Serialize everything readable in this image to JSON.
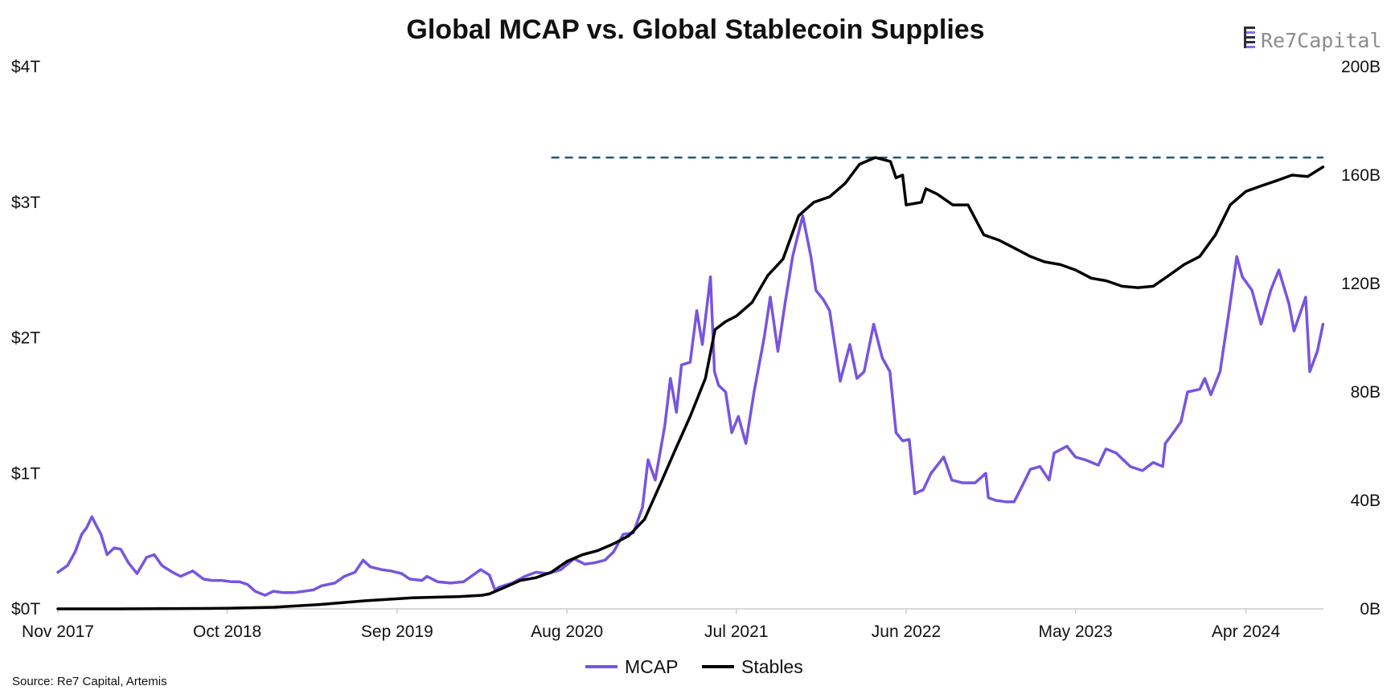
{
  "colors": {
    "mcap": "#7755e0",
    "stables": "#000000",
    "reference": "#1f5a7a",
    "axis": "#cccccc",
    "logo_bar_dark": "#2c2c3a",
    "logo_bar_accent": "#8a6fe0",
    "logo_text": "#8c8c8c"
  },
  "brand": {
    "name": "Re7Capital",
    "name_part1": "Re7",
    "name_part2": "Capital",
    "icon": "re7-logo-icon"
  },
  "source": "Source: Re7 Capital, Artemis",
  "chart_data": {
    "type": "line",
    "title": "Global MCAP vs. Global Stablecoin Supplies",
    "x_range": [
      "2017-11-01",
      "2024-09-01"
    ],
    "x_ticks": [
      {
        "label": "Nov 2017",
        "date": "2017-11-01"
      },
      {
        "label": "Oct 2018",
        "date": "2018-10-01"
      },
      {
        "label": "Sep 2019",
        "date": "2019-09-01"
      },
      {
        "label": "Aug 2020",
        "date": "2020-08-01"
      },
      {
        "label": "Jul 2021",
        "date": "2021-07-01"
      },
      {
        "label": "Jun 2022",
        "date": "2022-06-01"
      },
      {
        "label": "May 2023",
        "date": "2023-05-01"
      },
      {
        "label": "Apr 2024",
        "date": "2024-04-01"
      }
    ],
    "y_left": {
      "range": [
        0,
        4
      ],
      "unit": "trillion USD",
      "ticks": [
        {
          "label": "$0T",
          "value": 0
        },
        {
          "label": "$1T",
          "value": 1
        },
        {
          "label": "$2T",
          "value": 2
        },
        {
          "label": "$3T",
          "value": 3
        },
        {
          "label": "$4T",
          "value": 4
        }
      ]
    },
    "y_right": {
      "range": [
        0,
        200
      ],
      "unit": "billion USD",
      "ticks": [
        {
          "label": "0B",
          "value": 0
        },
        {
          "label": "40B",
          "value": 40
        },
        {
          "label": "80B",
          "value": 80
        },
        {
          "label": "120B",
          "value": 120
        },
        {
          "label": "160B",
          "value": 160
        },
        {
          "label": "200B",
          "value": 200
        }
      ]
    },
    "reference_line": {
      "axis": "right",
      "value": 166.5,
      "x_start": "2020-07-01",
      "x_end": "2024-09-01",
      "style": "dashed"
    },
    "legend": {
      "position": "bottom-center",
      "items": [
        "MCAP",
        "Stables"
      ]
    },
    "series": [
      {
        "name": "MCAP",
        "axis": "left",
        "points": [
          [
            "2017-11-01",
            0.27
          ],
          [
            "2017-11-20",
            0.32
          ],
          [
            "2017-12-05",
            0.42
          ],
          [
            "2017-12-18",
            0.55
          ],
          [
            "2017-12-28",
            0.6
          ],
          [
            "2018-01-07",
            0.68
          ],
          [
            "2018-01-15",
            0.62
          ],
          [
            "2018-01-25",
            0.55
          ],
          [
            "2018-02-06",
            0.4
          ],
          [
            "2018-02-20",
            0.45
          ],
          [
            "2018-03-05",
            0.44
          ],
          [
            "2018-03-20",
            0.34
          ],
          [
            "2018-04-06",
            0.26
          ],
          [
            "2018-04-25",
            0.38
          ],
          [
            "2018-05-10",
            0.4
          ],
          [
            "2018-05-25",
            0.32
          ],
          [
            "2018-06-15",
            0.27
          ],
          [
            "2018-07-01",
            0.24
          ],
          [
            "2018-07-25",
            0.28
          ],
          [
            "2018-08-15",
            0.22
          ],
          [
            "2018-09-01",
            0.21
          ],
          [
            "2018-09-20",
            0.21
          ],
          [
            "2018-10-10",
            0.2
          ],
          [
            "2018-10-25",
            0.2
          ],
          [
            "2018-11-10",
            0.18
          ],
          [
            "2018-11-25",
            0.13
          ],
          [
            "2018-12-15",
            0.1
          ],
          [
            "2018-12-31",
            0.13
          ],
          [
            "2019-01-20",
            0.12
          ],
          [
            "2019-02-10",
            0.12
          ],
          [
            "2019-03-01",
            0.13
          ],
          [
            "2019-03-20",
            0.14
          ],
          [
            "2019-04-05",
            0.17
          ],
          [
            "2019-05-01",
            0.19
          ],
          [
            "2019-05-20",
            0.24
          ],
          [
            "2019-06-10",
            0.27
          ],
          [
            "2019-06-26",
            0.36
          ],
          [
            "2019-07-10",
            0.31
          ],
          [
            "2019-08-01",
            0.29
          ],
          [
            "2019-08-20",
            0.28
          ],
          [
            "2019-09-10",
            0.26
          ],
          [
            "2019-09-26",
            0.22
          ],
          [
            "2019-10-20",
            0.21
          ],
          [
            "2019-10-30",
            0.24
          ],
          [
            "2019-11-20",
            0.2
          ],
          [
            "2019-12-15",
            0.19
          ],
          [
            "2020-01-10",
            0.2
          ],
          [
            "2020-02-13",
            0.29
          ],
          [
            "2020-03-01",
            0.25
          ],
          [
            "2020-03-12",
            0.14
          ],
          [
            "2020-03-20",
            0.16
          ],
          [
            "2020-04-15",
            0.19
          ],
          [
            "2020-05-10",
            0.24
          ],
          [
            "2020-06-01",
            0.27
          ],
          [
            "2020-06-25",
            0.26
          ],
          [
            "2020-07-20",
            0.29
          ],
          [
            "2020-08-15",
            0.37
          ],
          [
            "2020-09-05",
            0.33
          ],
          [
            "2020-09-25",
            0.34
          ],
          [
            "2020-10-15",
            0.36
          ],
          [
            "2020-11-01",
            0.42
          ],
          [
            "2020-11-20",
            0.55
          ],
          [
            "2020-12-10",
            0.56
          ],
          [
            "2020-12-28",
            0.75
          ],
          [
            "2021-01-08",
            1.1
          ],
          [
            "2021-01-22",
            0.95
          ],
          [
            "2021-02-10",
            1.35
          ],
          [
            "2021-02-21",
            1.7
          ],
          [
            "2021-03-05",
            1.45
          ],
          [
            "2021-03-15",
            1.8
          ],
          [
            "2021-04-01",
            1.82
          ],
          [
            "2021-04-14",
            2.2
          ],
          [
            "2021-04-25",
            1.95
          ],
          [
            "2021-05-11",
            2.45
          ],
          [
            "2021-05-19",
            1.75
          ],
          [
            "2021-05-27",
            1.65
          ],
          [
            "2021-06-10",
            1.6
          ],
          [
            "2021-06-22",
            1.3
          ],
          [
            "2021-07-05",
            1.42
          ],
          [
            "2021-07-20",
            1.22
          ],
          [
            "2021-08-05",
            1.6
          ],
          [
            "2021-08-25",
            2.0
          ],
          [
            "2021-09-06",
            2.3
          ],
          [
            "2021-09-21",
            1.9
          ],
          [
            "2021-10-05",
            2.25
          ],
          [
            "2021-10-20",
            2.6
          ],
          [
            "2021-11-09",
            2.9
          ],
          [
            "2021-11-25",
            2.6
          ],
          [
            "2021-12-05",
            2.35
          ],
          [
            "2021-12-20",
            2.28
          ],
          [
            "2022-01-01",
            2.2
          ],
          [
            "2022-01-22",
            1.68
          ],
          [
            "2022-02-10",
            1.95
          ],
          [
            "2022-02-24",
            1.7
          ],
          [
            "2022-03-10",
            1.75
          ],
          [
            "2022-03-29",
            2.1
          ],
          [
            "2022-04-15",
            1.85
          ],
          [
            "2022-04-30",
            1.75
          ],
          [
            "2022-05-12",
            1.3
          ],
          [
            "2022-05-25",
            1.24
          ],
          [
            "2022-06-07",
            1.25
          ],
          [
            "2022-06-18",
            0.85
          ],
          [
            "2022-07-05",
            0.88
          ],
          [
            "2022-07-20",
            1.0
          ],
          [
            "2022-08-14",
            1.12
          ],
          [
            "2022-08-30",
            0.95
          ],
          [
            "2022-09-20",
            0.93
          ],
          [
            "2022-10-15",
            0.93
          ],
          [
            "2022-11-05",
            1.0
          ],
          [
            "2022-11-10",
            0.82
          ],
          [
            "2022-11-25",
            0.8
          ],
          [
            "2022-12-15",
            0.79
          ],
          [
            "2022-12-31",
            0.79
          ],
          [
            "2023-01-15",
            0.9
          ],
          [
            "2023-02-01",
            1.03
          ],
          [
            "2023-02-20",
            1.05
          ],
          [
            "2023-03-10",
            0.95
          ],
          [
            "2023-03-20",
            1.15
          ],
          [
            "2023-04-14",
            1.2
          ],
          [
            "2023-05-01",
            1.12
          ],
          [
            "2023-05-20",
            1.1
          ],
          [
            "2023-06-15",
            1.06
          ],
          [
            "2023-06-30",
            1.18
          ],
          [
            "2023-07-20",
            1.15
          ],
          [
            "2023-08-17",
            1.05
          ],
          [
            "2023-09-10",
            1.02
          ],
          [
            "2023-10-01",
            1.08
          ],
          [
            "2023-10-20",
            1.05
          ],
          [
            "2023-10-25",
            1.22
          ],
          [
            "2023-11-10",
            1.3
          ],
          [
            "2023-11-25",
            1.38
          ],
          [
            "2023-12-08",
            1.6
          ],
          [
            "2024-01-01",
            1.62
          ],
          [
            "2024-01-11",
            1.7
          ],
          [
            "2024-01-23",
            1.58
          ],
          [
            "2024-02-10",
            1.75
          ],
          [
            "2024-02-28",
            2.2
          ],
          [
            "2024-03-14",
            2.6
          ],
          [
            "2024-03-25",
            2.45
          ],
          [
            "2024-04-13",
            2.35
          ],
          [
            "2024-05-01",
            2.1
          ],
          [
            "2024-05-20",
            2.35
          ],
          [
            "2024-06-05",
            2.5
          ],
          [
            "2024-06-25",
            2.25
          ],
          [
            "2024-07-05",
            2.05
          ],
          [
            "2024-07-28",
            2.3
          ],
          [
            "2024-08-05",
            1.75
          ],
          [
            "2024-08-20",
            1.9
          ],
          [
            "2024-08-31",
            2.1
          ]
        ]
      },
      {
        "name": "Stables",
        "axis": "right",
        "points": [
          [
            "2017-11-01",
            0.0
          ],
          [
            "2018-03-01",
            0.0
          ],
          [
            "2018-10-01",
            0.2
          ],
          [
            "2019-01-01",
            0.6
          ],
          [
            "2019-04-01",
            1.6
          ],
          [
            "2019-07-01",
            3.0
          ],
          [
            "2019-10-01",
            4.1
          ],
          [
            "2020-01-01",
            4.5
          ],
          [
            "2020-02-15",
            5.0
          ],
          [
            "2020-03-01",
            5.5
          ],
          [
            "2020-04-01",
            8.0
          ],
          [
            "2020-05-01",
            10.5
          ],
          [
            "2020-06-01",
            11.5
          ],
          [
            "2020-07-01",
            13.5
          ],
          [
            "2020-08-01",
            17.5
          ],
          [
            "2020-09-01",
            20.0
          ],
          [
            "2020-10-01",
            21.5
          ],
          [
            "2020-11-01",
            24.0
          ],
          [
            "2020-12-01",
            27.0
          ],
          [
            "2021-01-01",
            33.0
          ],
          [
            "2021-02-01",
            46.0
          ],
          [
            "2021-03-01",
            58.0
          ],
          [
            "2021-04-01",
            71.0
          ],
          [
            "2021-05-01",
            85.0
          ],
          [
            "2021-05-20",
            103.0
          ],
          [
            "2021-06-10",
            106.0
          ],
          [
            "2021-07-01",
            108.0
          ],
          [
            "2021-08-01",
            113.0
          ],
          [
            "2021-09-01",
            123.0
          ],
          [
            "2021-10-01",
            129.0
          ],
          [
            "2021-11-01",
            145.0
          ],
          [
            "2021-12-01",
            150.0
          ],
          [
            "2022-01-01",
            152.0
          ],
          [
            "2022-02-01",
            157.0
          ],
          [
            "2022-03-01",
            164.0
          ],
          [
            "2022-04-01",
            166.5
          ],
          [
            "2022-05-01",
            165.0
          ],
          [
            "2022-05-12",
            159.0
          ],
          [
            "2022-05-25",
            160.0
          ],
          [
            "2022-06-01",
            149.0
          ],
          [
            "2022-07-01",
            150.0
          ],
          [
            "2022-07-10",
            155.0
          ],
          [
            "2022-08-01",
            153.0
          ],
          [
            "2022-09-01",
            149.0
          ],
          [
            "2022-10-01",
            149.0
          ],
          [
            "2022-11-01",
            138.0
          ],
          [
            "2022-12-01",
            136.0
          ],
          [
            "2023-01-01",
            133.0
          ],
          [
            "2023-02-01",
            130.0
          ],
          [
            "2023-03-01",
            128.0
          ],
          [
            "2023-04-01",
            127.0
          ],
          [
            "2023-05-01",
            125.0
          ],
          [
            "2023-06-01",
            122.0
          ],
          [
            "2023-07-01",
            121.0
          ],
          [
            "2023-08-01",
            119.0
          ],
          [
            "2023-09-01",
            118.5
          ],
          [
            "2023-10-01",
            119.0
          ],
          [
            "2023-11-01",
            123.0
          ],
          [
            "2023-12-01",
            127.0
          ],
          [
            "2024-01-01",
            130.0
          ],
          [
            "2024-02-01",
            138.0
          ],
          [
            "2024-03-01",
            149.0
          ],
          [
            "2024-04-01",
            154.0
          ],
          [
            "2024-05-01",
            156.0
          ],
          [
            "2024-06-01",
            158.0
          ],
          [
            "2024-07-01",
            160.0
          ],
          [
            "2024-08-01",
            159.5
          ],
          [
            "2024-08-31",
            163.0
          ]
        ]
      }
    ]
  }
}
